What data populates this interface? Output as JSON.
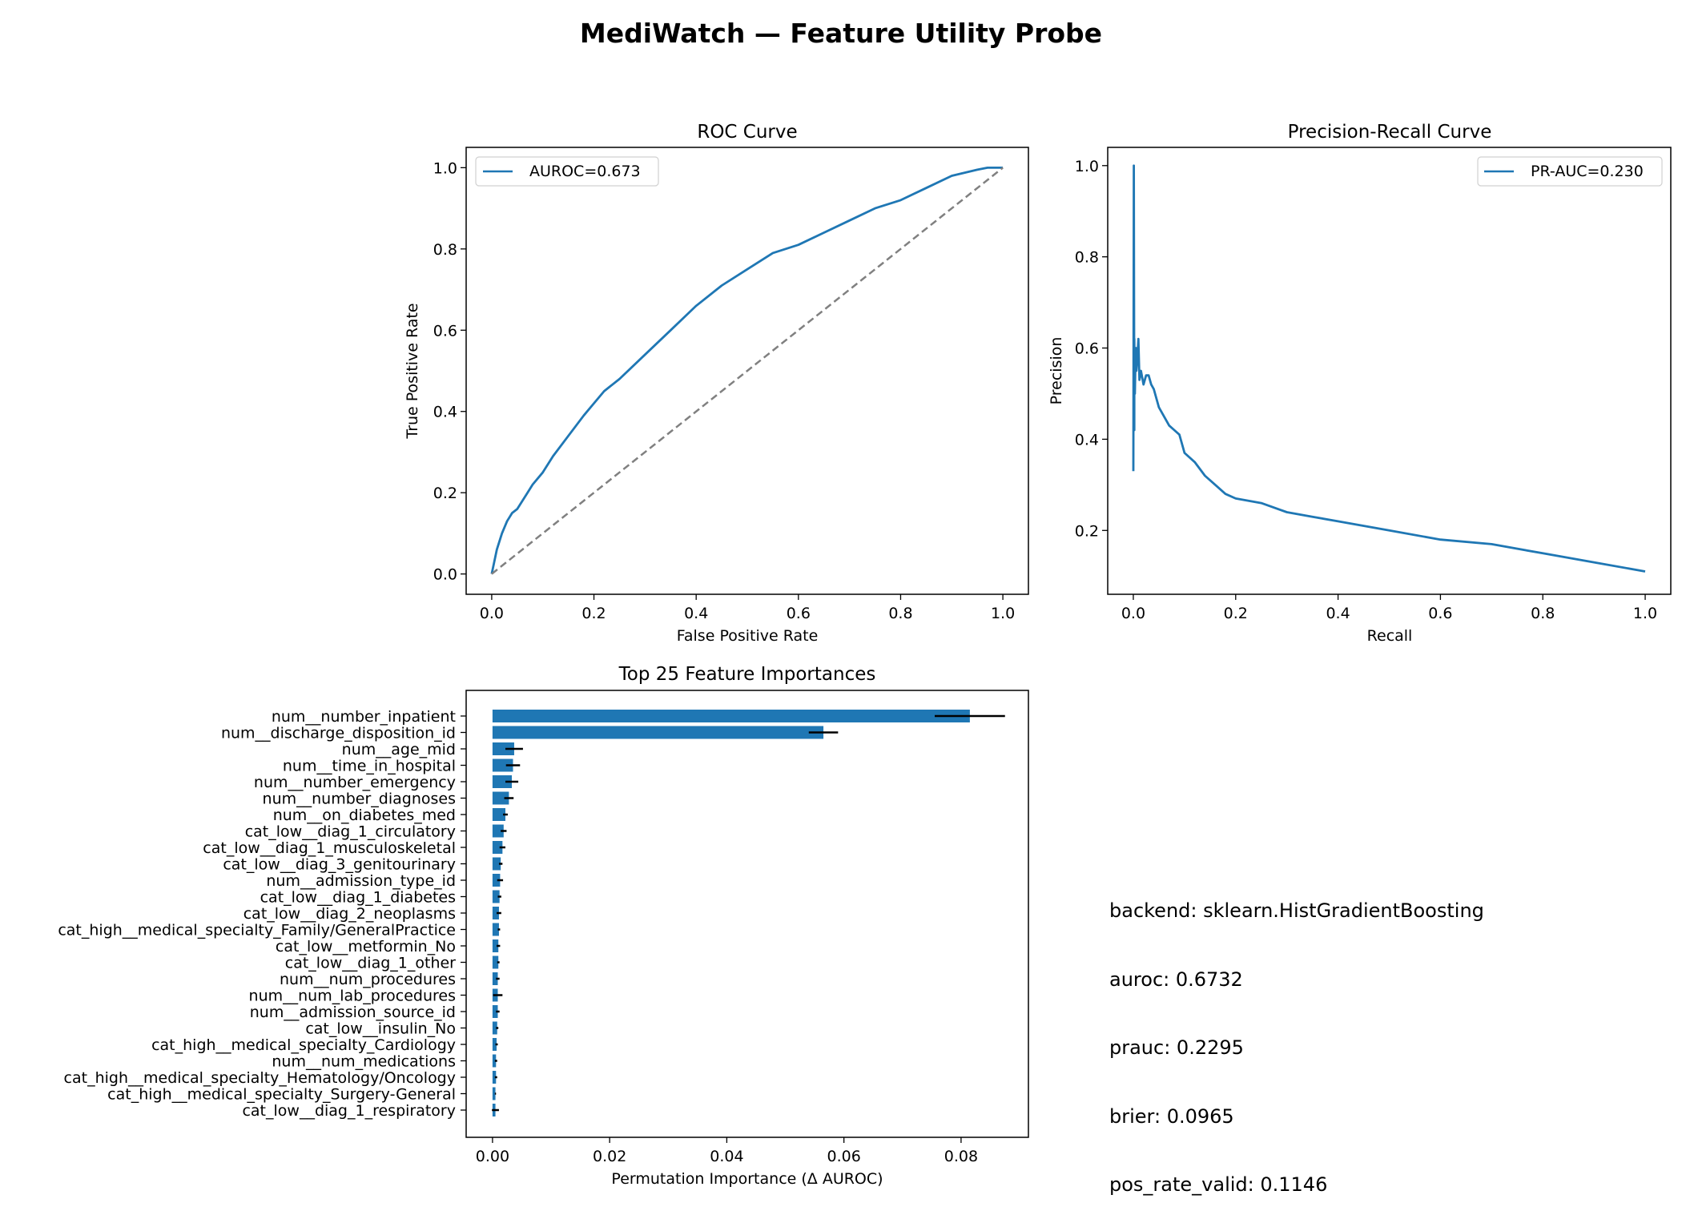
{
  "figure": {
    "title": "MediWatch — Feature Utility Probe"
  },
  "info_lines": [
    "backend: sklearn.HistGradientBoosting",
    "auroc: 0.6732",
    "prauc: 0.2295",
    "brier: 0.0965",
    "pos_rate_valid: 0.1146"
  ],
  "colors": {
    "series": "#1f77b4",
    "diagonal": "#808080",
    "errorbar": "#000000"
  },
  "chart_data": [
    {
      "type": "line",
      "title": "ROC Curve",
      "xlabel": "False Positive Rate",
      "ylabel": "True Positive Rate",
      "xlim": [
        -0.05,
        1.05
      ],
      "ylim": [
        -0.05,
        1.05
      ],
      "xticks": [
        0.0,
        0.2,
        0.4,
        0.6,
        0.8,
        1.0
      ],
      "yticks": [
        0.0,
        0.2,
        0.4,
        0.6,
        0.8,
        1.0
      ],
      "grid": false,
      "legend": "upper-left",
      "series": [
        {
          "name": "AUROC=0.673",
          "x": [
            0.0,
            0.005,
            0.01,
            0.02,
            0.03,
            0.04,
            0.05,
            0.07,
            0.08,
            0.1,
            0.12,
            0.15,
            0.18,
            0.2,
            0.22,
            0.25,
            0.3,
            0.35,
            0.4,
            0.45,
            0.5,
            0.55,
            0.6,
            0.65,
            0.7,
            0.75,
            0.8,
            0.85,
            0.9,
            0.95,
            0.97,
            1.0
          ],
          "y": [
            0.0,
            0.03,
            0.06,
            0.1,
            0.13,
            0.15,
            0.16,
            0.2,
            0.22,
            0.25,
            0.29,
            0.34,
            0.39,
            0.42,
            0.45,
            0.48,
            0.54,
            0.6,
            0.66,
            0.71,
            0.75,
            0.79,
            0.81,
            0.84,
            0.87,
            0.9,
            0.92,
            0.95,
            0.98,
            0.995,
            1.0,
            1.0
          ]
        },
        {
          "name": "",
          "style": "dashed",
          "x": [
            0.0,
            1.0
          ],
          "y": [
            0.0,
            1.0
          ]
        }
      ]
    },
    {
      "type": "line",
      "title": "Precision-Recall Curve",
      "xlabel": "Recall",
      "ylabel": "Precision",
      "xlim": [
        -0.05,
        1.05
      ],
      "ylim": [
        0.06,
        1.04
      ],
      "xticks": [
        0.0,
        0.2,
        0.4,
        0.6,
        0.8,
        1.0
      ],
      "yticks": [
        0.2,
        0.4,
        0.6,
        0.8,
        1.0
      ],
      "grid": false,
      "legend": "upper-right",
      "series": [
        {
          "name": "PR-AUC=0.230",
          "x": [
            0.0,
            0.001,
            0.002,
            0.002,
            0.003,
            0.004,
            0.005,
            0.006,
            0.008,
            0.01,
            0.012,
            0.015,
            0.02,
            0.025,
            0.03,
            0.035,
            0.04,
            0.05,
            0.06,
            0.07,
            0.08,
            0.09,
            0.1,
            0.12,
            0.14,
            0.16,
            0.18,
            0.2,
            0.25,
            0.3,
            0.35,
            0.4,
            0.5,
            0.6,
            0.7,
            0.8,
            0.9,
            1.0
          ],
          "y": [
            0.33,
            1.0,
            0.42,
            0.62,
            0.5,
            0.56,
            0.6,
            0.55,
            0.58,
            0.62,
            0.53,
            0.55,
            0.52,
            0.54,
            0.54,
            0.52,
            0.51,
            0.47,
            0.45,
            0.43,
            0.42,
            0.41,
            0.37,
            0.35,
            0.32,
            0.3,
            0.28,
            0.27,
            0.26,
            0.24,
            0.23,
            0.22,
            0.2,
            0.18,
            0.17,
            0.15,
            0.13,
            0.11
          ]
        }
      ]
    },
    {
      "type": "bar",
      "orientation": "horizontal",
      "title": "Top 25 Feature Importances",
      "xlabel": "Permutation Importance (Δ AUROC)",
      "ylabel": "",
      "xlim": [
        -0.0045,
        0.0915
      ],
      "xticks": [
        0.0,
        0.02,
        0.04,
        0.06,
        0.08
      ],
      "xtick_labels": [
        "0.00",
        "0.02",
        "0.04",
        "0.06",
        "0.08"
      ],
      "grid": false,
      "categories": [
        "num__number_inpatient",
        "num__discharge_disposition_id",
        "num__age_mid",
        "num__time_in_hospital",
        "num__number_emergency",
        "num__number_diagnoses",
        "num__on_diabetes_med",
        "cat_low__diag_1_circulatory",
        "cat_low__diag_1_musculoskeletal",
        "cat_low__diag_3_genitourinary",
        "num__admission_type_id",
        "cat_low__diag_1_diabetes",
        "cat_low__diag_2_neoplasms",
        "cat_high__medical_specialty_Family/GeneralPractice",
        "cat_low__metformin_No",
        "cat_low__diag_1_other",
        "num__num_procedures",
        "num__num_lab_procedures",
        "num__admission_source_id",
        "cat_low__insulin_No",
        "cat_high__medical_specialty_Cardiology",
        "num__num_medications",
        "cat_high__medical_specialty_Hematology/Oncology",
        "cat_high__medical_specialty_Surgery-General",
        "cat_low__diag_1_respiratory"
      ],
      "values": [
        0.0815,
        0.0565,
        0.0037,
        0.0035,
        0.0033,
        0.0028,
        0.0022,
        0.0019,
        0.0017,
        0.0014,
        0.0013,
        0.0012,
        0.0011,
        0.0011,
        0.001,
        0.001,
        0.0009,
        0.0009,
        0.0009,
        0.0008,
        0.0007,
        0.0006,
        0.0006,
        0.0005,
        0.0005
      ],
      "errors": [
        0.006,
        0.0025,
        0.0015,
        0.0012,
        0.0011,
        0.0008,
        0.0004,
        0.0005,
        0.0005,
        0.0003,
        0.0005,
        0.0003,
        0.0004,
        0.0002,
        0.0003,
        0.0002,
        0.0003,
        0.0008,
        0.0003,
        0.0002,
        0.0002,
        0.0002,
        0.0002,
        0.0001,
        0.0006
      ]
    }
  ]
}
